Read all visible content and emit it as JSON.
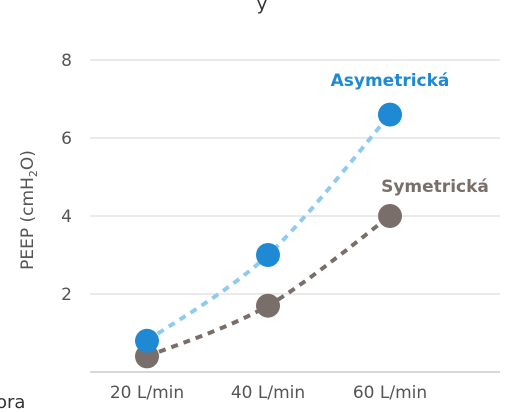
{
  "chart_data": {
    "type": "line",
    "categories": [
      "20 L/min",
      "40 L/min",
      "60 L/min"
    ],
    "series": [
      {
        "name": "Asymetrická",
        "values": [
          0.8,
          3.0,
          6.6
        ],
        "color": "#1f8ad3",
        "line_color": "#8fcbf0"
      },
      {
        "name": "Symetrická",
        "values": [
          0.4,
          1.7,
          4.0
        ],
        "color": "#7a6e6a",
        "line_color": "#7a6e6a"
      }
    ],
    "yticks": [
      "2",
      "4",
      "6",
      "8"
    ],
    "ylim": [
      0,
      8.5
    ],
    "ylabel": {
      "prefix": "PEEP (cmH",
      "subscript": "2",
      "suffix": "O)"
    },
    "grid": true
  },
  "fragments": {
    "top": "y",
    "bottom_left": "ora"
  }
}
